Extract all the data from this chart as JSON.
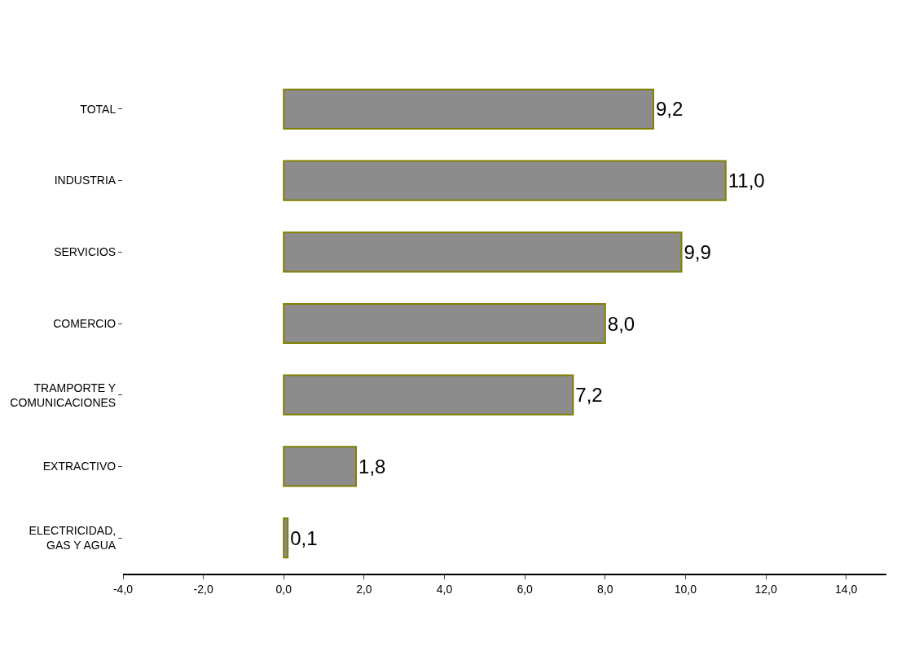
{
  "chart_data": {
    "type": "bar",
    "orientation": "horizontal",
    "categories": [
      "TOTAL",
      "INDUSTRIA",
      "SERVICIOS",
      "COMERCIO",
      "TRAMPORTE Y COMUNICACIONES",
      "EXTRACTIVO",
      "ELECTRICIDAD, GAS Y AGUA"
    ],
    "values": [
      9.2,
      11.0,
      9.9,
      8.0,
      7.2,
      1.8,
      0.1
    ],
    "value_labels": [
      "9,2",
      "11,0",
      "9,9",
      "8,0",
      "7,2",
      "1,8",
      "0,1"
    ],
    "color": "#8c8c8c",
    "xlim": [
      -4,
      15
    ],
    "xticks": [
      {
        "value": -4,
        "label": "-4,0"
      },
      {
        "value": -2,
        "label": "-2,0"
      },
      {
        "value": 0,
        "label": "0,0"
      },
      {
        "value": 2,
        "label": "2,0"
      },
      {
        "value": 4,
        "label": "4,0"
      },
      {
        "value": 6,
        "label": "6,0"
      },
      {
        "value": 8,
        "label": "8,0"
      },
      {
        "value": 10,
        "label": "10,0"
      },
      {
        "value": 12,
        "label": "12,0"
      },
      {
        "value": 14,
        "label": "14,0"
      }
    ],
    "grid": false
  }
}
